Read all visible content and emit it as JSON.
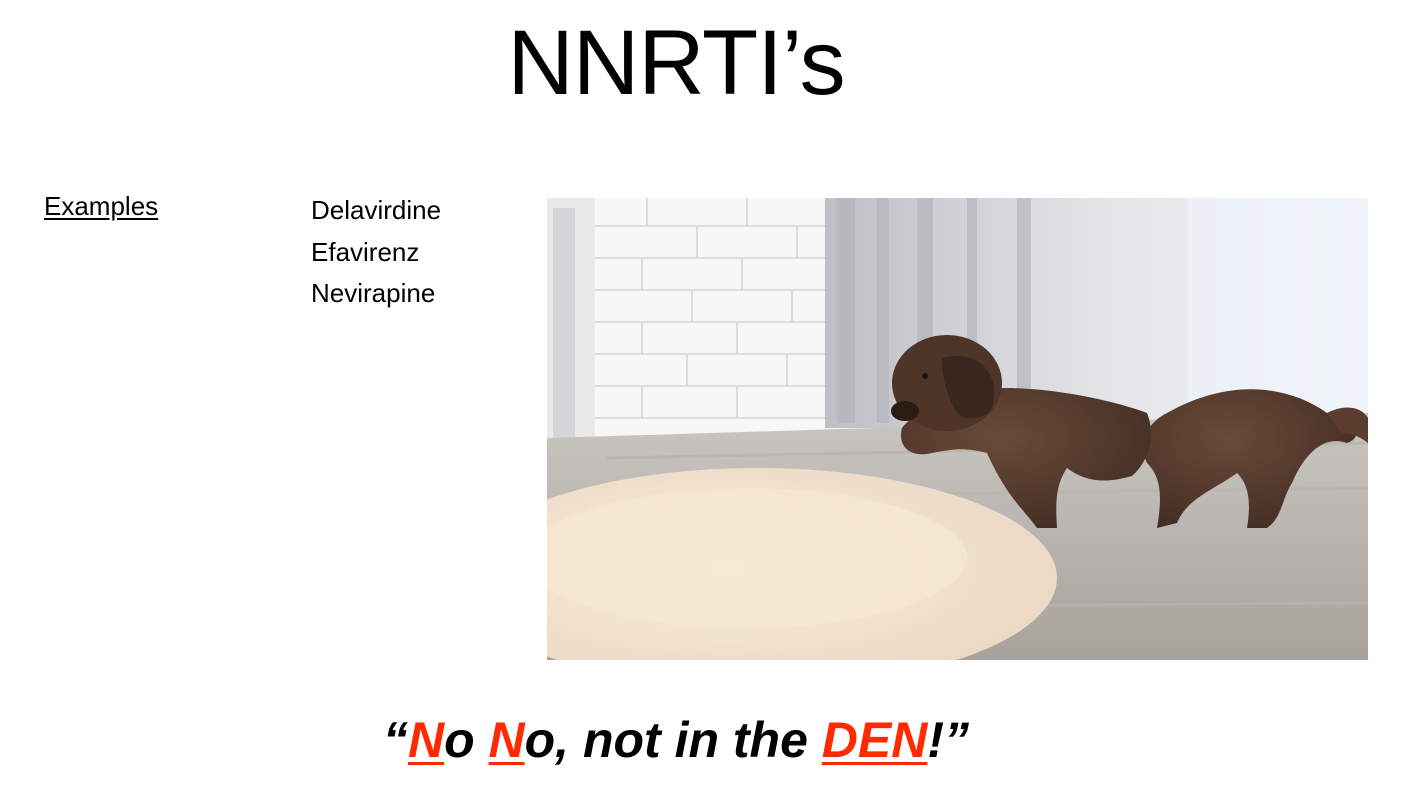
{
  "slide": {
    "title": "NNRTI’s"
  },
  "examples": {
    "heading": "Examples",
    "drugs": [
      "Delavirdine",
      "Efavirenz",
      "Nevirapine"
    ]
  },
  "photo": {
    "subject": "puppy-illustration"
  },
  "mnemonic": {
    "open_quote": "“",
    "n1": "N",
    "o1": "o ",
    "n2": "N",
    "rest": "o, not in the ",
    "den": "DEN",
    "close": "!”"
  },
  "colors": {
    "highlight": "#ff2a00",
    "text": "#000000"
  }
}
